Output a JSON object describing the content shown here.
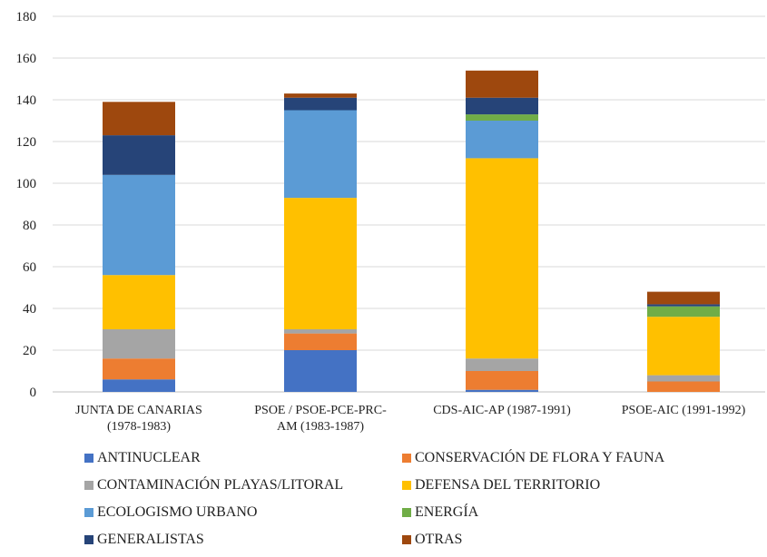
{
  "chart_data": {
    "type": "bar",
    "stacked": true,
    "categories": [
      [
        "JUNTA DE CANARIAS",
        "(1978-1983)"
      ],
      [
        "PSOE / PSOE-PCE-PRC-",
        "AM (1983-1987)"
      ],
      [
        "CDS-AIC-AP (1987-1991)"
      ],
      [
        "PSOE-AIC (1991-1992)"
      ]
    ],
    "ylim": [
      0,
      180
    ],
    "yticks": [
      0,
      20,
      40,
      60,
      80,
      100,
      120,
      140,
      160,
      180
    ],
    "grid": true,
    "legend_position": "bottom",
    "series": [
      {
        "name": "ANTINUCLEAR",
        "color": "#4472C4",
        "values": [
          6,
          20,
          1,
          0
        ]
      },
      {
        "name": "CONSERVACIÓN DE FLORA Y FAUNA",
        "color": "#ED7D31",
        "values": [
          10,
          8,
          9,
          5
        ]
      },
      {
        "name": "CONTAMINACIÓN PLAYAS/LITORAL",
        "color": "#A5A5A5",
        "values": [
          14,
          2,
          6,
          3
        ]
      },
      {
        "name": "DEFENSA DEL TERRITORIO",
        "color": "#FFC000",
        "values": [
          26,
          63,
          96,
          28
        ]
      },
      {
        "name": "ECOLOGISMO URBANO",
        "color": "#5B9BD5",
        "values": [
          48,
          42,
          18,
          0
        ]
      },
      {
        "name": "ENERGÍA",
        "color": "#70AD47",
        "values": [
          0,
          0,
          3,
          5
        ]
      },
      {
        "name": "GENERALISTAS",
        "color": "#264478",
        "values": [
          19,
          6,
          8,
          1
        ]
      },
      {
        "name": "OTRAS",
        "color": "#9E480E",
        "values": [
          16,
          2,
          13,
          6
        ]
      }
    ]
  }
}
